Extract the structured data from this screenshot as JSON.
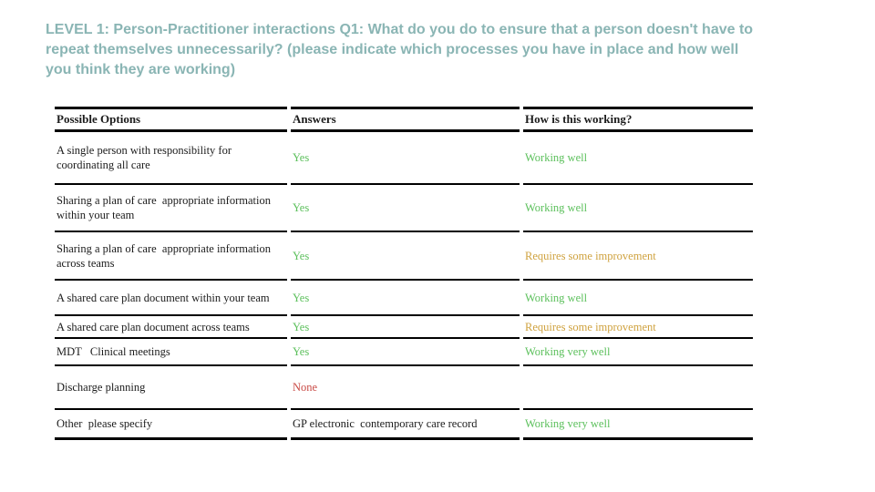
{
  "slide": {
    "title": "LEVEL 1: Person-Practitioner interactions Q1: What do you do to ensure that a person doesn't have to\nrepeat themselves unnecessarily? (please indicate which processes you have in place and how well\nyou think they are working)",
    "title_color": "#8ab5b4"
  },
  "table": {
    "headers": [
      "Possible Options",
      "Answers",
      "How is this working?"
    ],
    "text_color": "#1c1c1c",
    "border_color": "#000000",
    "status_palette": {
      "green": "#5cc05c",
      "amber": "#cfa23f",
      "red": "#c94a45",
      "black": "#1c1c1c"
    },
    "rows": [
      {
        "option": "A single person with responsibility for coordinating all care",
        "answer": "Yes",
        "answer_color": "#5cc05c",
        "status": "Working well",
        "status_color": "#5cc05c"
      },
      {
        "option": "Sharing a plan of care  appropriate information within your team",
        "answer": "Yes",
        "answer_color": "#5cc05c",
        "status": "Working well",
        "status_color": "#5cc05c"
      },
      {
        "option": "Sharing a plan of care  appropriate information across teams",
        "answer": "Yes",
        "answer_color": "#5cc05c",
        "status": "Requires some improvement",
        "status_color": "#cfa23f"
      },
      {
        "option": "A shared care plan document within your team",
        "answer": "Yes",
        "answer_color": "#5cc05c",
        "status": "Working well",
        "status_color": "#5cc05c"
      },
      {
        "option": "A shared care plan document across teams",
        "answer": "Yes",
        "answer_color": "#5cc05c",
        "status": "Requires some improvement",
        "status_color": "#cfa23f"
      },
      {
        "option": "MDT   Clinical meetings",
        "answer": "Yes",
        "answer_color": "#5cc05c",
        "status": "Working very well",
        "status_color": "#5cc05c"
      },
      {
        "option": "Discharge planning",
        "answer": "None",
        "answer_color": "#c94a45",
        "status": "",
        "status_color": "#1c1c1c"
      },
      {
        "option": "Other  please specify",
        "answer": "GP electronic  contemporary care record",
        "answer_color": "#1c1c1c",
        "status": "Working very well",
        "status_color": "#5cc05c"
      }
    ]
  }
}
